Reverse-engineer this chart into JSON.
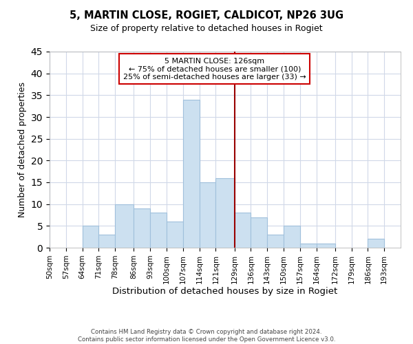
{
  "title": "5, MARTIN CLOSE, ROGIET, CALDICOT, NP26 3UG",
  "subtitle": "Size of property relative to detached houses in Rogiet",
  "xlabel": "Distribution of detached houses by size in Rogiet",
  "ylabel": "Number of detached properties",
  "bin_labels": [
    "50sqm",
    "57sqm",
    "64sqm",
    "71sqm",
    "78sqm",
    "86sqm",
    "93sqm",
    "100sqm",
    "107sqm",
    "114sqm",
    "121sqm",
    "129sqm",
    "136sqm",
    "143sqm",
    "150sqm",
    "157sqm",
    "164sqm",
    "172sqm",
    "179sqm",
    "186sqm",
    "193sqm"
  ],
  "bar_values": [
    0,
    0,
    5,
    3,
    10,
    9,
    8,
    6,
    34,
    15,
    16,
    8,
    7,
    3,
    5,
    1,
    1,
    0,
    0,
    2,
    0
  ],
  "bar_color": "#cce0f0",
  "bar_edge_color": "#a0c0dc",
  "vline_x_bin": 11,
  "vline_color": "#990000",
  "annotation_text": "5 MARTIN CLOSE: 126sqm\n← 75% of detached houses are smaller (100)\n25% of semi-detached houses are larger (33) →",
  "annotation_box_color": "#ffffff",
  "annotation_box_edge": "#cc0000",
  "ylim": [
    0,
    45
  ],
  "yticks": [
    0,
    5,
    10,
    15,
    20,
    25,
    30,
    35,
    40,
    45
  ],
  "footnote": "Contains HM Land Registry data © Crown copyright and database right 2024.\nContains public sector information licensed under the Open Government Licence v3.0.",
  "bin_edges": [
    50,
    57,
    64,
    71,
    78,
    86,
    93,
    100,
    107,
    114,
    121,
    129,
    136,
    143,
    150,
    157,
    164,
    172,
    179,
    186,
    193,
    200
  ],
  "background_color": "#ffffff",
  "grid_color": "#d0d8e8"
}
